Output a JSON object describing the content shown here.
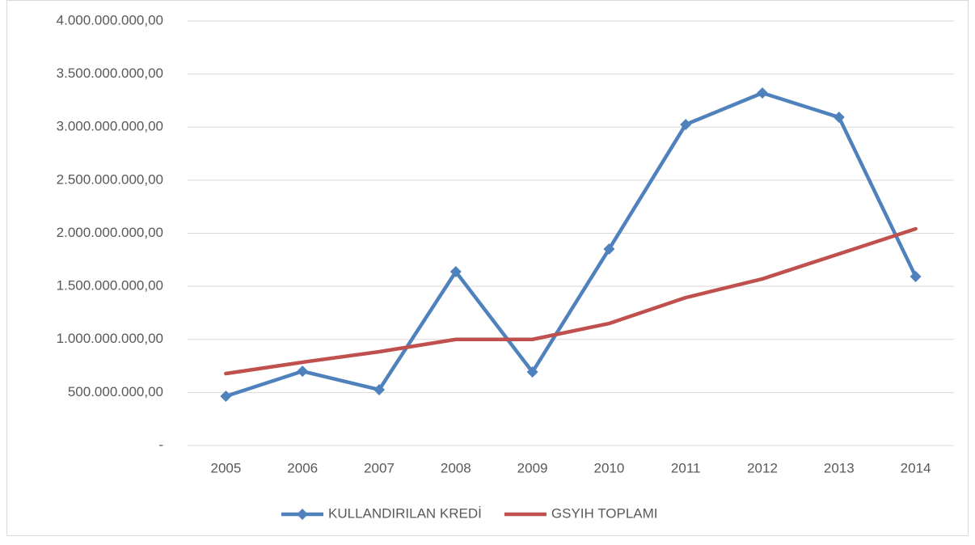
{
  "chart_data": {
    "type": "line",
    "categories": [
      "2005",
      "2006",
      "2007",
      "2008",
      "2009",
      "2010",
      "2011",
      "2012",
      "2013",
      "2014"
    ],
    "series": [
      {
        "name": "KULLANDIRILAN KREDİ",
        "color": "#4f81bd",
        "marker": "diamond",
        "values": [
          465000000,
          700000000,
          526000000,
          1638000000,
          693000000,
          1851000000,
          3025000000,
          3322000000,
          3093000000,
          1592000000
        ]
      },
      {
        "name": "GSYIH TOPLAMI",
        "color": "#c0504d",
        "values": [
          678000000,
          785000000,
          884000000,
          1000000000,
          1000000000,
          1150000000,
          1394000000,
          1570000000,
          1806000000,
          2042000000
        ]
      }
    ],
    "ylim": [
      0,
      4000000000
    ],
    "yticks": [
      {
        "value": 0,
        "label": "-"
      },
      {
        "value": 500000000,
        "label": "500.000.000,00"
      },
      {
        "value": 1000000000,
        "label": "1.000.000.000,00"
      },
      {
        "value": 1500000000,
        "label": "1.500.000.000,00"
      },
      {
        "value": 2000000000,
        "label": "2.000.000.000,00"
      },
      {
        "value": 2500000000,
        "label": "2.500.000.000,00"
      },
      {
        "value": 3000000000,
        "label": "3.000.000.000,00"
      },
      {
        "value": 3500000000,
        "label": "3.500.000.000,00"
      },
      {
        "value": 4000000000,
        "label": "4.000.000.000,00"
      }
    ],
    "grid": true,
    "legend": "bottom"
  }
}
